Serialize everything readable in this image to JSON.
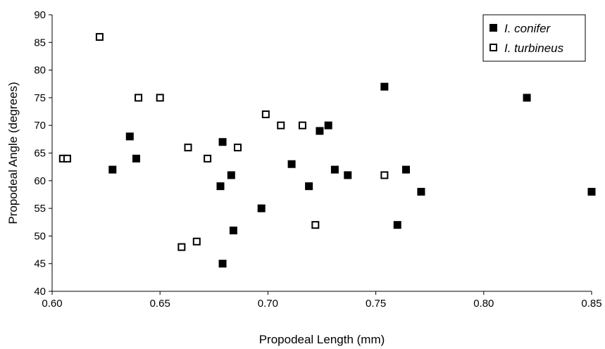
{
  "chart_data": {
    "type": "scatter",
    "title": "",
    "xlabel": "Propodeal Length (mm)",
    "ylabel": "Propodeal Angle (degrees)",
    "xlim": [
      0.6,
      0.85
    ],
    "ylim": [
      40,
      90
    ],
    "x_ticks": [
      "0.60",
      "0.65",
      "0.70",
      "0.75",
      "0.80",
      "0.85"
    ],
    "y_ticks": [
      "40",
      "45",
      "50",
      "55",
      "60",
      "65",
      "70",
      "75",
      "80",
      "85",
      "90"
    ],
    "grid": false,
    "legend_position": "top-right",
    "series": [
      {
        "name": "I. conifer",
        "marker": "filled-square",
        "color": "#000000",
        "points": [
          [
            0.628,
            62
          ],
          [
            0.636,
            68
          ],
          [
            0.639,
            64
          ],
          [
            0.678,
            59
          ],
          [
            0.679,
            67
          ],
          [
            0.679,
            45
          ],
          [
            0.683,
            61
          ],
          [
            0.684,
            51
          ],
          [
            0.697,
            55
          ],
          [
            0.711,
            63
          ],
          [
            0.719,
            59
          ],
          [
            0.724,
            69
          ],
          [
            0.728,
            70
          ],
          [
            0.731,
            62
          ],
          [
            0.737,
            61
          ],
          [
            0.754,
            77
          ],
          [
            0.76,
            52
          ],
          [
            0.764,
            62
          ],
          [
            0.771,
            58
          ],
          [
            0.82,
            75
          ],
          [
            0.85,
            58
          ]
        ]
      },
      {
        "name": "I. turbineus",
        "marker": "open-square",
        "color": "#000000",
        "points": [
          [
            0.605,
            64
          ],
          [
            0.607,
            64
          ],
          [
            0.622,
            86
          ],
          [
            0.64,
            75
          ],
          [
            0.65,
            75
          ],
          [
            0.66,
            48
          ],
          [
            0.663,
            66
          ],
          [
            0.667,
            49
          ],
          [
            0.672,
            64
          ],
          [
            0.686,
            66
          ],
          [
            0.699,
            72
          ],
          [
            0.706,
            70
          ],
          [
            0.716,
            70
          ],
          [
            0.722,
            52
          ],
          [
            0.754,
            61
          ]
        ]
      }
    ]
  }
}
